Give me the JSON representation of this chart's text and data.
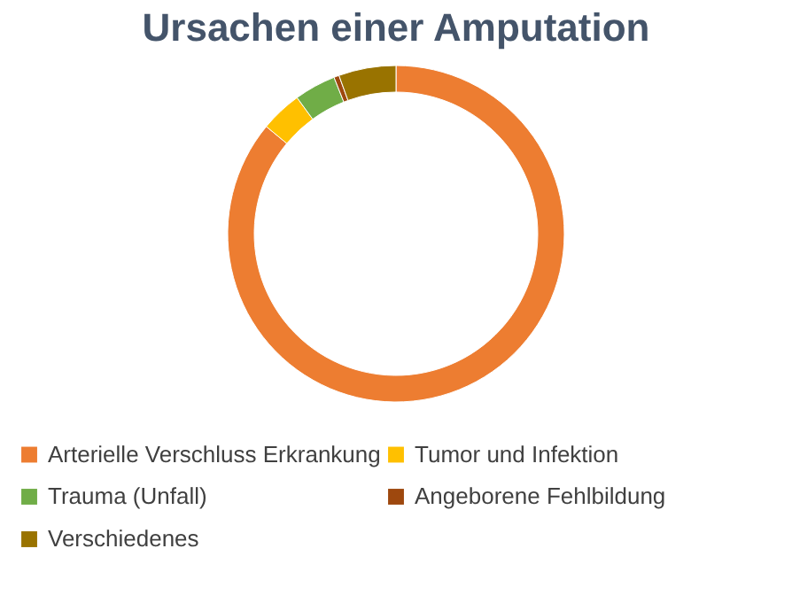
{
  "chart_data": {
    "type": "donut",
    "title": "Ursachen einer Amputation",
    "categories": [
      "Arterielle Verschluss Erkrankung",
      "Tumor und Infektion",
      "Trauma (Unfall)",
      "Angeborene Fehlbildung",
      "Verschiedenes"
    ],
    "values": [
      86,
      4,
      4,
      0.5,
      5.5
    ],
    "colors": [
      "#ed7d31",
      "#ffc000",
      "#70ad47",
      "#9e480e",
      "#997300"
    ],
    "legend": "bottom"
  }
}
